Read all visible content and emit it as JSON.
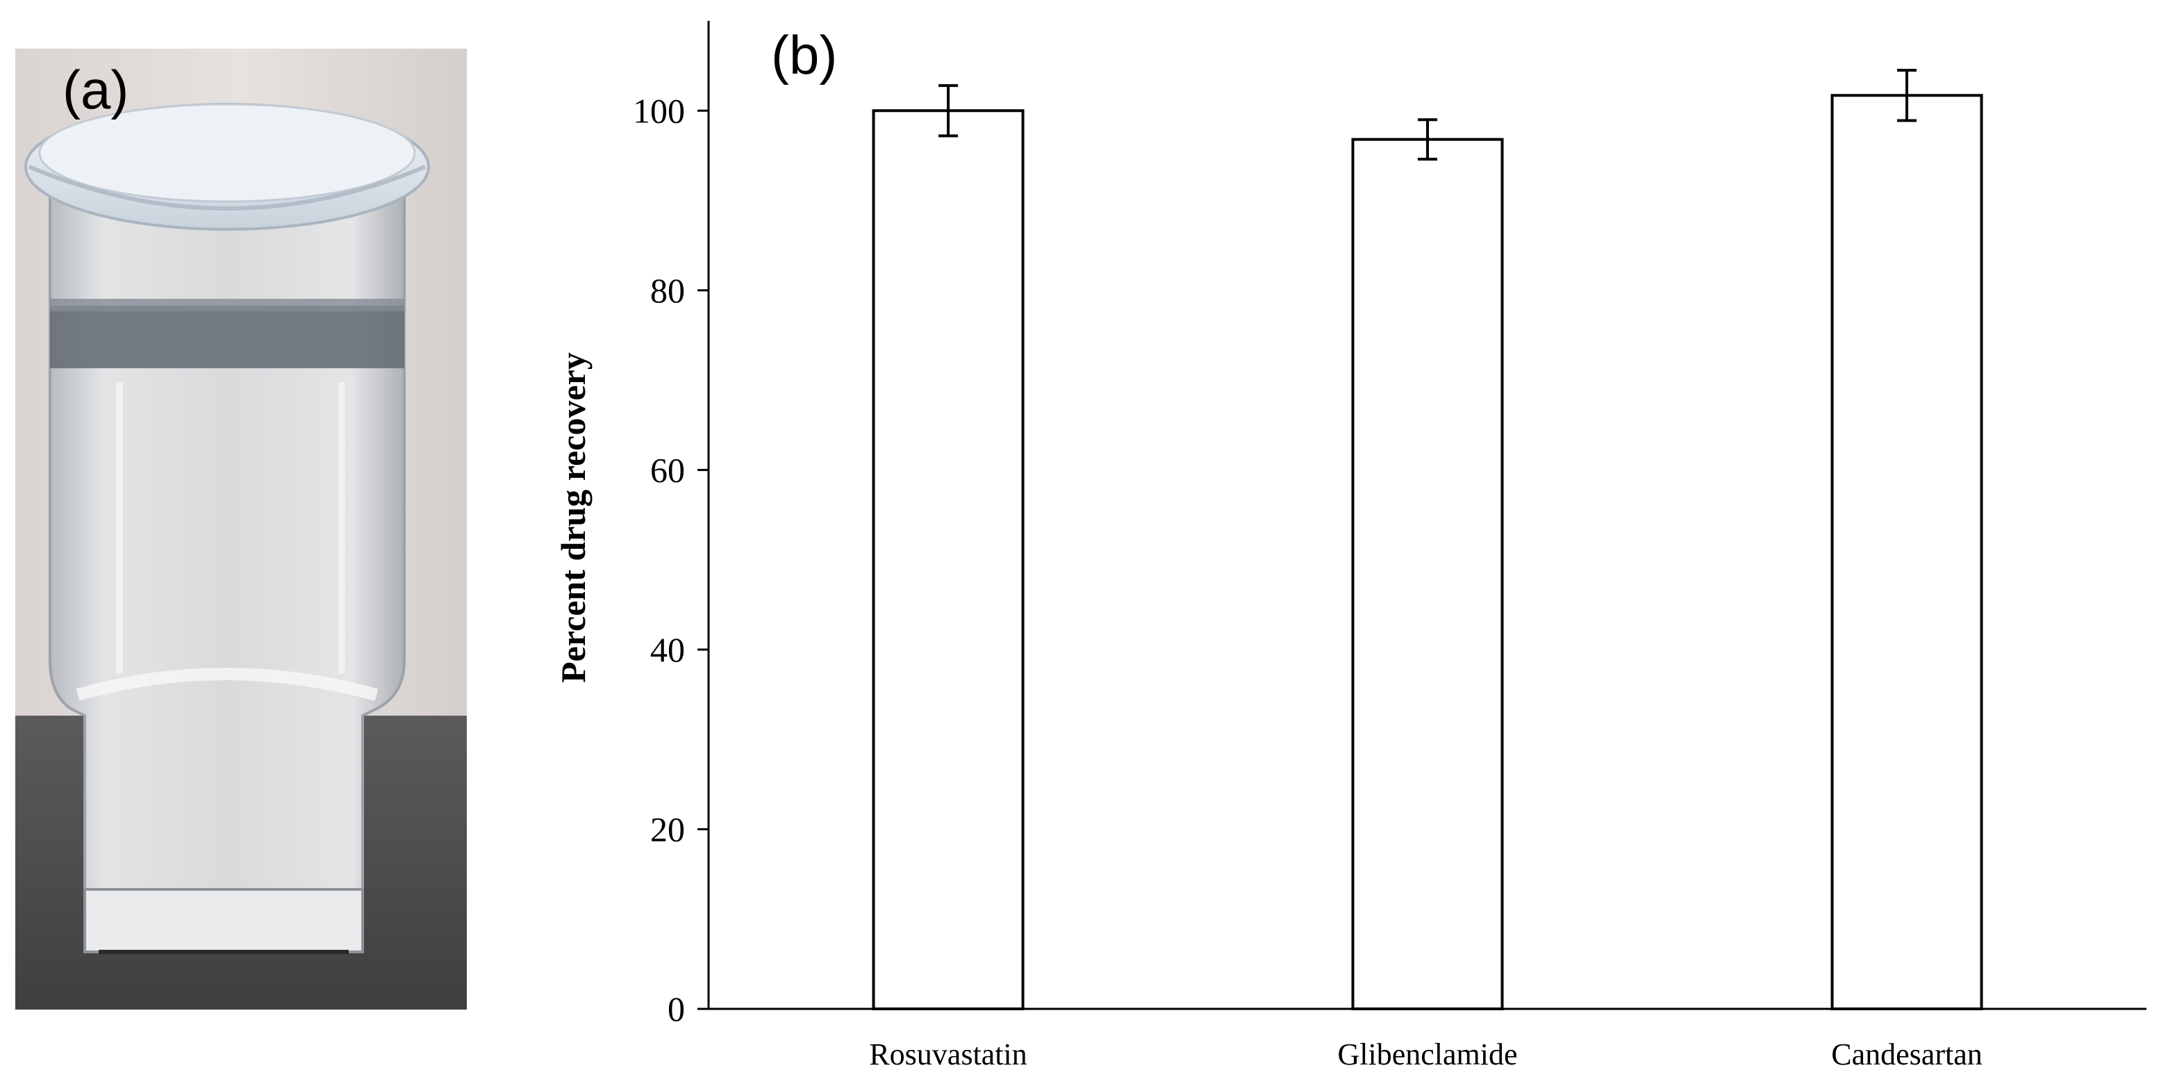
{
  "panels": {
    "a_label": "(a)",
    "b_label": "(b)"
  },
  "photo": {
    "description_icon": "glass-jar-photo"
  },
  "chart_data": {
    "type": "bar",
    "categories": [
      "Rosuvastatin",
      "Glibenclamide",
      "Candesartan"
    ],
    "values": [
      100,
      96.8,
      101.7
    ],
    "errors": [
      2.8,
      2.2,
      2.8
    ],
    "title": "",
    "xlabel": "",
    "ylabel": "Percent drug recovery",
    "ylim": [
      0,
      110
    ],
    "yticks": [
      0,
      20,
      40,
      60,
      80,
      100
    ],
    "grid": false,
    "bar_fill": "#ffffff",
    "bar_stroke": "#000000"
  }
}
